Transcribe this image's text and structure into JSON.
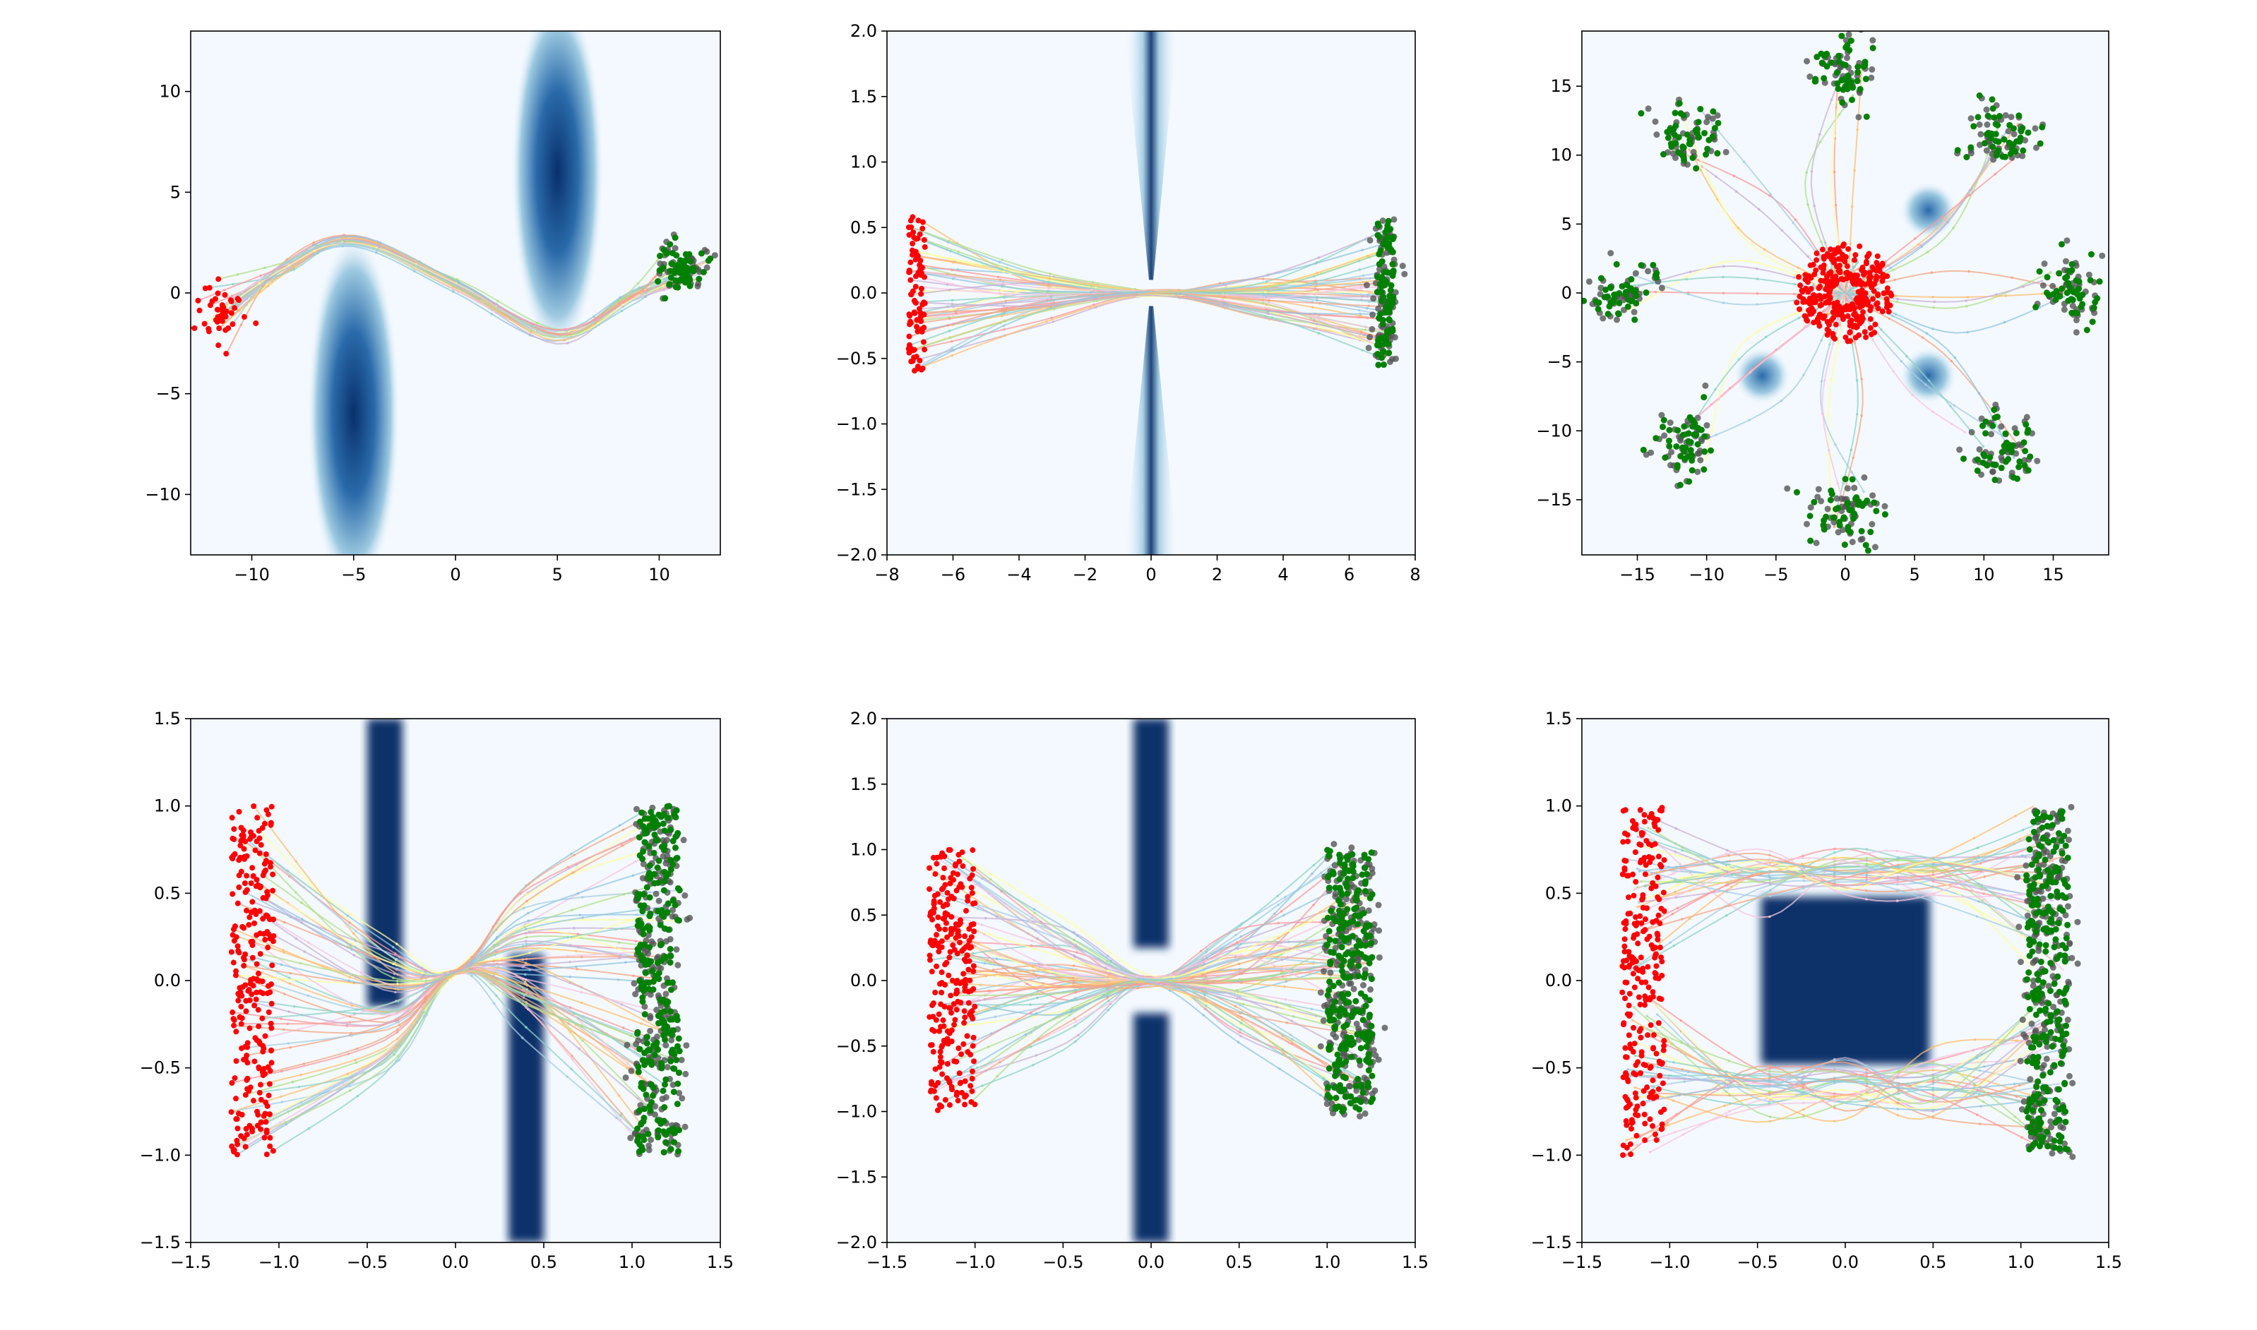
{
  "figure": {
    "background": "#ffffff",
    "plot_background": "#f4f9ff",
    "obstacle_color": "#08306b",
    "start_color": "#ff0000",
    "target_color": "#008000",
    "reference_color": "#555555"
  },
  "chart_data": [
    {
      "type": "scatter",
      "panel": "top-left",
      "title": "",
      "xlabel": "",
      "ylabel": "",
      "xlim": [
        -13,
        13
      ],
      "ylim": [
        -13,
        13
      ],
      "xticks": [
        -10,
        -5,
        0,
        5,
        10
      ],
      "yticks": [
        -10,
        -5,
        0,
        5,
        10
      ],
      "xtick_labels": [
        "−10",
        "−5",
        "0",
        "5",
        "10"
      ],
      "ytick_labels": [
        "−10",
        "−5",
        "0",
        "5",
        "10"
      ],
      "obstacles": [
        {
          "shape": "ellipse",
          "cx": -5,
          "cy": -6,
          "rx": 1.9,
          "ry": 7.8
        },
        {
          "shape": "ellipse",
          "cx": 5,
          "cy": 6,
          "rx": 1.9,
          "ry": 7.8
        }
      ],
      "start_cluster": {
        "cx": -11.5,
        "cy": -1,
        "sx": 0.6,
        "sy": 0.8,
        "n": 45
      },
      "target_cluster": {
        "cx": 11,
        "cy": 1.4,
        "sx": 0.6,
        "sy": 0.6,
        "n": 60
      },
      "path": {
        "waypoints": [
          [
            -11.5,
            -1
          ],
          [
            -8.5,
            1.2
          ],
          [
            -5,
            2.6
          ],
          [
            0,
            0.4
          ],
          [
            5,
            -2.1
          ],
          [
            8.5,
            -0.2
          ],
          [
            11,
            1.4
          ]
        ],
        "count": 28,
        "jitter": 0.5
      }
    },
    {
      "type": "scatter",
      "panel": "top-center",
      "title": "",
      "xlabel": "",
      "ylabel": "",
      "xlim": [
        -8,
        8
      ],
      "ylim": [
        -2,
        2
      ],
      "xticks": [
        -8,
        -6,
        -4,
        -2,
        0,
        2,
        4,
        6,
        8
      ],
      "yticks": [
        -2,
        -1.5,
        -1,
        -0.5,
        0,
        0.5,
        1,
        1.5,
        2
      ],
      "xtick_labels": [
        "−8",
        "−6",
        "−4",
        "−2",
        "0",
        "2",
        "4",
        "6",
        "8"
      ],
      "ytick_labels": [
        "−2.0",
        "−1.5",
        "−1.0",
        "−0.5",
        "0.0",
        "0.5",
        "1.0",
        "1.5",
        "2.0"
      ],
      "obstacles": [
        {
          "shape": "wedge",
          "cx": 0,
          "y_from": 0.1,
          "y_to": 2,
          "half_width": 0.8
        },
        {
          "shape": "wedge",
          "cx": 0,
          "y_from": -0.1,
          "y_to": -2,
          "half_width": 0.8
        }
      ],
      "start_cluster": {
        "cx": -7.1,
        "cy": 0,
        "sx": 0.25,
        "sy": 0.6,
        "n": 90,
        "uniform": true
      },
      "target_cluster": {
        "cx": 7.1,
        "cy": 0,
        "sx": 0.25,
        "sy": 0.55,
        "n": 90,
        "uniform": true
      },
      "path": {
        "waypoints": [
          [
            -7.1,
            0
          ],
          [
            -3.5,
            0
          ],
          [
            0,
            0
          ],
          [
            3.5,
            0
          ],
          [
            7.1,
            0
          ]
        ],
        "count": 45,
        "jitter": 0.5,
        "pinch": true
      }
    },
    {
      "type": "scatter",
      "panel": "top-right",
      "title": "",
      "xlabel": "",
      "ylabel": "",
      "xlim": [
        -19,
        19
      ],
      "ylim": [
        -19,
        19
      ],
      "xticks": [
        -15,
        -10,
        -5,
        0,
        5,
        10,
        15
      ],
      "yticks": [
        -15,
        -10,
        -5,
        0,
        5,
        10,
        15
      ],
      "xtick_labels": [
        "−15",
        "−10",
        "−5",
        "0",
        "5",
        "10",
        "15"
      ],
      "ytick_labels": [
        "−15",
        "−10",
        "−5",
        "0",
        "5",
        "10",
        "15"
      ],
      "obstacles": [
        {
          "shape": "blob",
          "cx": 6,
          "cy": 6,
          "r": 1.3
        },
        {
          "shape": "blob",
          "cx": -6,
          "cy": -6,
          "r": 1.3
        },
        {
          "shape": "blob",
          "cx": 6,
          "cy": -6,
          "r": 1.3
        }
      ],
      "radial": {
        "start_radius": 3,
        "target_radius": 16,
        "directions": 8,
        "paths_per_direction": 5
      }
    },
    {
      "type": "scatter",
      "panel": "bottom-left",
      "title": "",
      "xlabel": "",
      "ylabel": "",
      "xlim": [
        -1.5,
        1.5
      ],
      "ylim": [
        -1.5,
        1.5
      ],
      "xticks": [
        -1.5,
        -1,
        -0.5,
        0,
        0.5,
        1,
        1.5
      ],
      "yticks": [
        -1.5,
        -1,
        -0.5,
        0,
        0.5,
        1,
        1.5
      ],
      "xtick_labels": [
        "−1.5",
        "−1.0",
        "−0.5",
        "0.0",
        "0.5",
        "1.0",
        "1.5"
      ],
      "ytick_labels": [
        "−1.5",
        "−1.0",
        "−0.5",
        "0.0",
        "0.5",
        "1.0",
        "1.5"
      ],
      "obstacles": [
        {
          "shape": "rect",
          "x0": -0.5,
          "x1": -0.3,
          "y0": -0.15,
          "y1": 1.5
        },
        {
          "shape": "rect",
          "x0": 0.3,
          "x1": 0.5,
          "y0": -1.5,
          "y1": 0.15
        }
      ],
      "start_cluster": {
        "cx": -1.15,
        "cy": 0,
        "sx": 0.12,
        "sy": 1,
        "n": 260,
        "uniform": true
      },
      "target_cluster": {
        "cx": 1.15,
        "cy": 0,
        "sx": 0.12,
        "sy": 1,
        "n": 260,
        "uniform": true
      },
      "path": {
        "waypoints": [
          [
            -1.15,
            0
          ],
          [
            -0.4,
            -0.25
          ],
          [
            0,
            0.05
          ],
          [
            0.4,
            0.25
          ],
          [
            1.15,
            0
          ]
        ],
        "count": 55,
        "jitter": 0.35,
        "pinch": true
      }
    },
    {
      "type": "scatter",
      "panel": "bottom-center",
      "title": "",
      "xlabel": "",
      "ylabel": "",
      "xlim": [
        -1.5,
        1.5
      ],
      "ylim": [
        -2,
        2
      ],
      "xticks": [
        -1.5,
        -1,
        -0.5,
        0,
        0.5,
        1,
        1.5
      ],
      "yticks": [
        -2,
        -1.5,
        -1,
        -0.5,
        0,
        0.5,
        1,
        1.5,
        2
      ],
      "xtick_labels": [
        "−1.5",
        "−1.0",
        "−0.5",
        "0.0",
        "0.5",
        "1.0",
        "1.5"
      ],
      "ytick_labels": [
        "−2.0",
        "−1.5",
        "−1.0",
        "−0.5",
        "0.0",
        "0.5",
        "1.0",
        "1.5",
        "2.0"
      ],
      "obstacles": [
        {
          "shape": "rect",
          "x0": -0.1,
          "x1": 0.1,
          "y0": 0.25,
          "y1": 2
        },
        {
          "shape": "rect",
          "x0": -0.1,
          "x1": 0.1,
          "y0": -2,
          "y1": -0.25
        }
      ],
      "start_cluster": {
        "cx": -1.13,
        "cy": 0,
        "sx": 0.13,
        "sy": 1,
        "n": 260,
        "uniform": true
      },
      "target_cluster": {
        "cx": 1.13,
        "cy": 0,
        "sx": 0.13,
        "sy": 1,
        "n": 260,
        "uniform": true
      },
      "path": {
        "waypoints": [
          [
            -1.13,
            0
          ],
          [
            -0.5,
            0
          ],
          [
            0,
            0
          ],
          [
            0.5,
            0
          ],
          [
            1.13,
            0
          ]
        ],
        "count": 60,
        "jitter": 1,
        "pinch": true
      }
    },
    {
      "type": "scatter",
      "panel": "bottom-right",
      "title": "",
      "xlabel": "",
      "ylabel": "",
      "xlim": [
        -1.5,
        1.5
      ],
      "ylim": [
        -1.5,
        1.5
      ],
      "xticks": [
        -1.5,
        -1,
        -0.5,
        0,
        0.5,
        1,
        1.5
      ],
      "yticks": [
        -1.5,
        -1,
        -0.5,
        0,
        0.5,
        1,
        1.5
      ],
      "xtick_labels": [
        "−1.5",
        "−1.0",
        "−0.5",
        "0.0",
        "0.5",
        "1.0",
        "1.5"
      ],
      "ytick_labels": [
        "−1.5",
        "−1.0",
        "−0.5",
        "0.0",
        "0.5",
        "1.0",
        "1.5"
      ],
      "obstacles": [
        {
          "shape": "rect",
          "x0": -0.48,
          "x1": 0.48,
          "y0": -0.48,
          "y1": 0.48
        }
      ],
      "start_cluster": {
        "cx": -1.15,
        "cy": 0,
        "sx": 0.12,
        "sy": 1,
        "n": 260,
        "uniform": true
      },
      "target_cluster": {
        "cx": 1.15,
        "cy": 0,
        "sx": 0.12,
        "sy": 1,
        "n": 260,
        "uniform": true
      },
      "split_paths": {
        "upper": [
          [
            -1.15,
            0.85
          ],
          [
            -0.5,
            0.6
          ],
          [
            0,
            0.62
          ],
          [
            0.5,
            0.62
          ],
          [
            1.15,
            0.85
          ]
        ],
        "lower": [
          [
            -1.15,
            -0.85
          ],
          [
            -0.5,
            -0.6
          ],
          [
            0,
            -0.63
          ],
          [
            0.5,
            -0.62
          ],
          [
            1.15,
            -0.85
          ]
        ],
        "count": 30,
        "jitter": 0.35
      }
    }
  ]
}
